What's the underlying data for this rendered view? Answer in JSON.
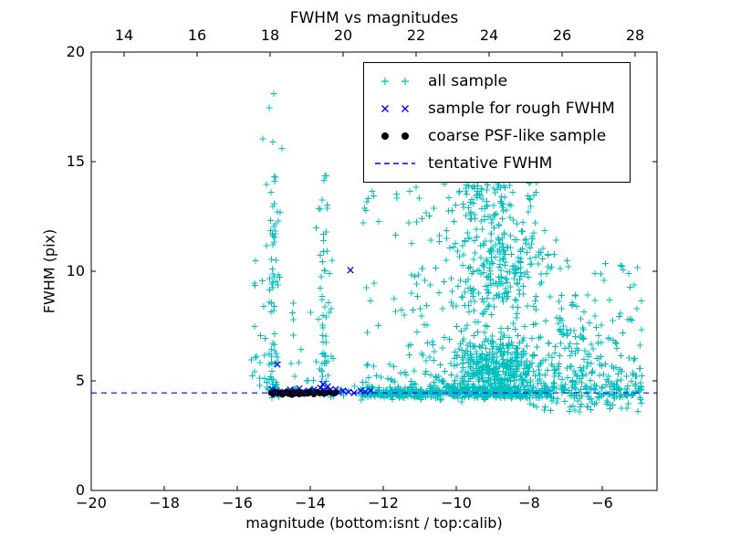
{
  "chart_data": {
    "type": "scatter",
    "title": "FWHM vs magnitudes",
    "xlabel": "magnitude (bottom:isnt / top:calib)",
    "ylabel": "FWHM (pix)",
    "xlim": [
      -20,
      -4.5
    ],
    "ylim": [
      0,
      20
    ],
    "grid": false,
    "background": "#ffffff",
    "tentative_fwhm_y": 4.45,
    "axes": {
      "bottom": {
        "name": "isnt magnitude",
        "tick_values": [
          -20,
          -18,
          -16,
          -14,
          -12,
          -10,
          -8,
          -6
        ],
        "tick_labels": [
          "−20",
          "−18",
          "−16",
          "−14",
          "−12",
          "−10",
          "−8",
          "−6"
        ]
      },
      "top": {
        "name": "calib magnitude",
        "tick_values": [
          14,
          16,
          18,
          20,
          22,
          24,
          26,
          28
        ],
        "tick_labels": [
          "14",
          "16",
          "18",
          "20",
          "22",
          "24",
          "26",
          "28"
        ],
        "offset_from_bottom": 33.1
      },
      "left": {
        "tick_values": [
          0,
          5,
          10,
          15,
          20
        ],
        "tick_labels": [
          "0",
          "5",
          "10",
          "15",
          "20"
        ]
      }
    },
    "colors": {
      "all_sample": "#00bfbf",
      "rough_fwhm": "#0000ff",
      "psf_like": "#000000",
      "tentative_line": "#0000ff",
      "axis": "#000000"
    },
    "legend": {
      "position": "upper right",
      "entries": [
        {
          "label": "all sample",
          "marker": "plus",
          "color": "#00bfbf"
        },
        {
          "label": "sample for rough FWHM",
          "marker": "x",
          "color": "#0000ff"
        },
        {
          "label": "coarse PSF-like sample",
          "marker": "dot",
          "color": "#000000"
        },
        {
          "label": "tentative FWHM",
          "marker": "dashed-line",
          "color": "#0000ff"
        }
      ]
    },
    "series": [
      {
        "name": "all sample",
        "marker": "plus",
        "color": "#00bfbf",
        "clusters": [
          {
            "name": "locus-left",
            "count": 40,
            "x": {
              "d": "u",
              "a": -15.15,
              "b": -12.6
            },
            "y": {
              "d": "g",
              "m": 4.5,
              "s": 0.12,
              "a": 4.2,
              "b": 4.85
            }
          },
          {
            "name": "locus-mid",
            "count": 170,
            "x": {
              "d": "u",
              "a": -12.6,
              "b": -10.8
            },
            "y": {
              "d": "g",
              "m": 4.45,
              "s": 0.13,
              "a": 4.05,
              "b": 4.95
            }
          },
          {
            "name": "locus-right",
            "count": 330,
            "x": {
              "d": "u",
              "a": -10.8,
              "b": -7.4
            },
            "y": {
              "d": "g",
              "m": 4.45,
              "s": 0.15,
              "a": 3.9,
              "b": 5.1
            }
          },
          {
            "name": "locus-far-right",
            "count": 140,
            "x": {
              "d": "u",
              "a": -7.4,
              "b": -4.9
            },
            "y": {
              "d": "g",
              "m": 4.5,
              "s": 0.3,
              "a": 3.5,
              "b": 5.6
            }
          },
          {
            "name": "column-15",
            "count": 80,
            "x": {
              "d": "g",
              "m": -15.02,
              "s": 0.09,
              "a": -15.3,
              "b": -14.75
            },
            "y": {
              "d": "p",
              "a": 4.6,
              "b": 14.6,
              "k": 1.8
            }
          },
          {
            "name": "column-15-west",
            "count": 12,
            "x": {
              "d": "u",
              "a": -15.6,
              "b": -15.2
            },
            "y": {
              "d": "p",
              "a": 5.0,
              "b": 12.5,
              "k": 1.5
            }
          },
          {
            "name": "left-edge",
            "count": 6,
            "x": {
              "d": "u",
              "a": -15.75,
              "b": -15.3
            },
            "y": {
              "d": "u",
              "a": 4.4,
              "b": 6.2
            }
          },
          {
            "name": "column-13-6",
            "count": 55,
            "x": {
              "d": "g",
              "m": -13.62,
              "s": 0.1,
              "a": -13.9,
              "b": -13.35
            },
            "y": {
              "d": "p",
              "a": 4.9,
              "b": 14.4,
              "k": 1.6
            }
          },
          {
            "name": "between-columns",
            "count": 12,
            "x": {
              "d": "u",
              "a": -14.6,
              "b": -13.9
            },
            "y": {
              "d": "p",
              "a": 5.0,
              "b": 9.5,
              "k": 1.8
            }
          },
          {
            "name": "group-12-3-high",
            "count": 7,
            "x": {
              "d": "u",
              "a": -12.55,
              "b": -12.1
            },
            "y": {
              "d": "u",
              "a": 12.1,
              "b": 13.7
            }
          },
          {
            "name": "mid-sparse",
            "count": 30,
            "x": {
              "d": "u",
              "a": -12.6,
              "b": -11.2
            },
            "y": {
              "d": "p",
              "a": 4.9,
              "b": 9.5,
              "k": 1.6
            }
          },
          {
            "name": "pre-blob-high",
            "count": 10,
            "x": {
              "d": "u",
              "a": -11.9,
              "b": -10.7
            },
            "y": {
              "d": "u",
              "a": 11.5,
              "b": 14.5
            }
          },
          {
            "name": "blob-left-sparse",
            "count": 40,
            "x": {
              "d": "u",
              "a": -11.3,
              "b": -10.6
            },
            "y": {
              "d": "p",
              "a": 4.8,
              "b": 13.0,
              "k": 1.8
            }
          },
          {
            "name": "blob-core",
            "count": 500,
            "x": {
              "d": "g",
              "m": -8.9,
              "s": 0.7,
              "a": -10.6,
              "b": -7.2
            },
            "y": {
              "d": "g",
              "m": 5.5,
              "s": 0.9,
              "a": 4.2,
              "b": 8.0
            }
          },
          {
            "name": "blob-mid",
            "count": 230,
            "x": {
              "d": "g",
              "m": -8.9,
              "s": 0.75,
              "a": -10.6,
              "b": -7.1
            },
            "y": {
              "d": "u",
              "a": 8.0,
              "b": 11.5
            }
          },
          {
            "name": "blob-high",
            "count": 130,
            "x": {
              "d": "g",
              "m": -9.1,
              "s": 0.65,
              "a": -10.5,
              "b": -7.5
            },
            "y": {
              "d": "u",
              "a": 11.5,
              "b": 14.3
            }
          },
          {
            "name": "blob-top",
            "count": 18,
            "x": {
              "d": "g",
              "m": -9.2,
              "s": 0.5,
              "a": -10.2,
              "b": -8.0
            },
            "y": {
              "d": "u",
              "a": 14.3,
              "b": 15.2
            }
          },
          {
            "name": "right-shoulder",
            "count": 45,
            "x": {
              "d": "u",
              "a": -7.2,
              "b": -6.2
            },
            "y": {
              "d": "u",
              "a": 5.0,
              "b": 9.0
            }
          },
          {
            "name": "right-scatter",
            "count": 110,
            "x": {
              "d": "u",
              "a": -7.4,
              "b": -4.9
            },
            "y": {
              "d": "p",
              "a": 5.2,
              "b": 10.5,
              "k": 2.2
            }
          },
          {
            "name": "below-band-right",
            "count": 18,
            "x": {
              "d": "u",
              "a": -8.2,
              "b": -5.0
            },
            "y": {
              "d": "u",
              "a": 3.55,
              "b": 4.1
            }
          }
        ],
        "extra_points": [
          [
            -15.0,
            18.1
          ],
          [
            -15.12,
            17.45
          ],
          [
            -15.02,
            15.9
          ],
          [
            -14.78,
            15.6
          ],
          [
            -15.3,
            16.05
          ],
          [
            -13.6,
            14.35
          ],
          [
            -12.3,
            13.65
          ],
          [
            -11.75,
            14.4
          ],
          [
            -5.05,
            8.3
          ],
          [
            -6.2,
            9.9
          ],
          [
            -10.35,
            14.9
          ],
          [
            -11.3,
            12.2
          ]
        ]
      },
      {
        "name": "sample for rough FWHM",
        "marker": "x",
        "color": "#0000ff",
        "points": [
          [
            -15.05,
            4.62
          ],
          [
            -15.0,
            4.48
          ],
          [
            -14.92,
            4.55
          ],
          [
            -14.85,
            4.42
          ],
          [
            -14.9,
            5.75
          ],
          [
            -14.7,
            4.5
          ],
          [
            -14.62,
            4.45
          ],
          [
            -14.55,
            4.6
          ],
          [
            -14.5,
            4.4
          ],
          [
            -14.42,
            4.52
          ],
          [
            -14.35,
            4.45
          ],
          [
            -14.3,
            4.65
          ],
          [
            -14.22,
            4.5
          ],
          [
            -14.15,
            4.42
          ],
          [
            -14.05,
            4.55
          ],
          [
            -13.98,
            4.45
          ],
          [
            -13.9,
            4.6
          ],
          [
            -13.82,
            4.5
          ],
          [
            -13.72,
            4.68
          ],
          [
            -13.65,
            4.85
          ],
          [
            -13.6,
            4.55
          ],
          [
            -13.52,
            4.75
          ],
          [
            -13.45,
            4.6
          ],
          [
            -13.38,
            4.5
          ],
          [
            -13.3,
            4.62
          ],
          [
            -13.22,
            4.48
          ],
          [
            -13.1,
            4.55
          ],
          [
            -12.95,
            4.5
          ],
          [
            -12.9,
            10.05
          ],
          [
            -12.8,
            4.45
          ],
          [
            -12.62,
            4.55
          ],
          [
            -12.5,
            4.5
          ],
          [
            -12.35,
            4.55
          ]
        ]
      },
      {
        "name": "coarse PSF-like sample",
        "marker": "dot",
        "color": "#000000",
        "points": [
          [
            -15.08,
            4.45
          ],
          [
            -15.02,
            4.38
          ],
          [
            -14.96,
            4.5
          ],
          [
            -14.88,
            4.42
          ],
          [
            -14.82,
            4.48
          ],
          [
            -14.76,
            4.36
          ],
          [
            -14.7,
            4.44
          ],
          [
            -14.65,
            4.52
          ],
          [
            -14.6,
            4.4
          ],
          [
            -14.55,
            4.46
          ],
          [
            -14.5,
            4.35
          ],
          [
            -14.45,
            4.5
          ],
          [
            -14.4,
            4.42
          ],
          [
            -14.35,
            4.47
          ],
          [
            -14.3,
            4.38
          ],
          [
            -14.26,
            4.5
          ],
          [
            -14.21,
            4.44
          ],
          [
            -14.16,
            4.4
          ],
          [
            -14.1,
            4.48
          ],
          [
            -14.05,
            4.42
          ],
          [
            -14.0,
            4.52
          ],
          [
            -13.95,
            4.45
          ],
          [
            -13.9,
            4.38
          ],
          [
            -13.85,
            4.46
          ],
          [
            -13.8,
            4.5
          ],
          [
            -13.74,
            4.42
          ],
          [
            -13.68,
            4.47
          ],
          [
            -13.62,
            4.4
          ],
          [
            -13.55,
            4.44
          ],
          [
            -13.48,
            4.5
          ],
          [
            -13.42,
            4.45
          ],
          [
            -13.35,
            4.42
          ],
          [
            -13.28,
            4.47
          ]
        ]
      },
      {
        "name": "tentative FWHM",
        "type": "hline",
        "y": 4.45,
        "linestyle": "dashed",
        "color": "#0000ff"
      }
    ]
  }
}
